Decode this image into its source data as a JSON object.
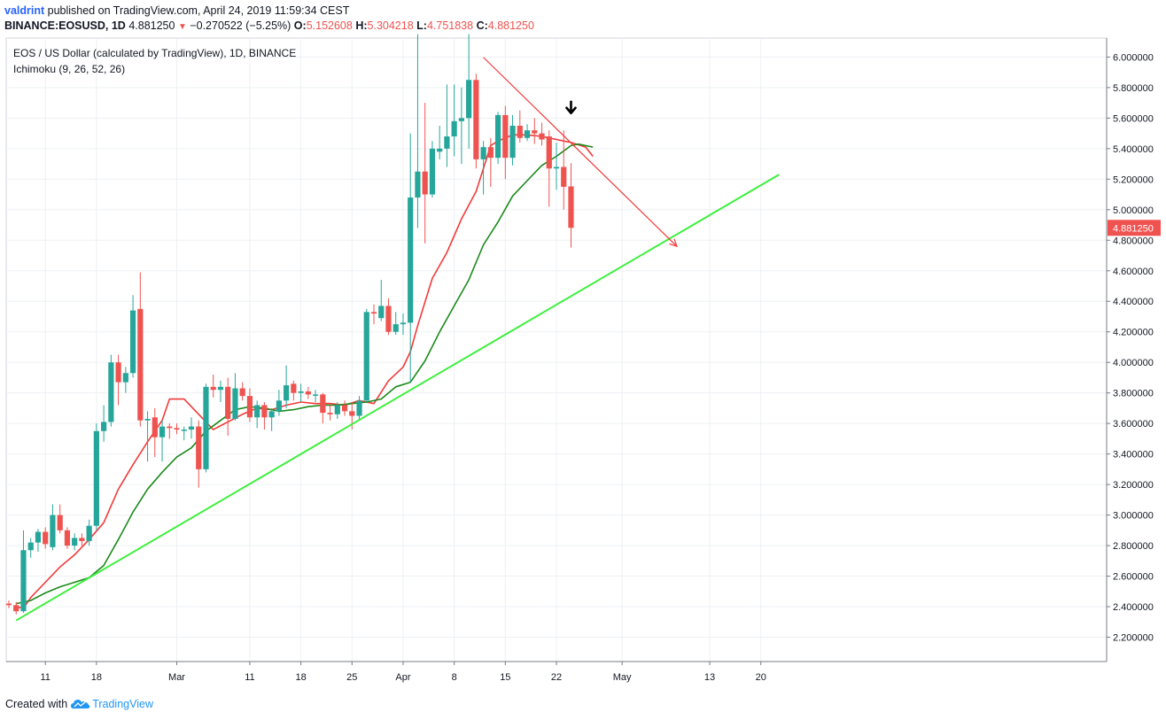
{
  "header": {
    "author": "valdrint",
    "published_text": " published on TradingView.com, April 24, 2019 11:59:34 CEST",
    "symbol": "BINANCE:EOSUSD, 1D",
    "last_price": "4.881250",
    "change_arrow": "▼",
    "change": "−0.270522 (−5.25%)",
    "o_label": "O:",
    "o_value": "5.152608",
    "h_label": "H:",
    "h_value": "5.304218",
    "l_label": "L:",
    "l_value": "4.751838",
    "c_label": "C:",
    "c_value": "4.881250"
  },
  "legend": {
    "title": "EOS / US Dollar (calculated by TradingView), 1D, BINANCE",
    "indicator": "Ichimoku (9, 26, 52, 26)"
  },
  "footer": {
    "created_with": "Created with",
    "brand": "TradingView"
  },
  "colors": {
    "up": "#26a69a",
    "down": "#ef5350",
    "conversion_line": "#f23a3a",
    "base_line": "#1b8a1b",
    "support_line": "#3cf03c",
    "resistance_line": "#f23a3a",
    "grid": "#eef0f3"
  },
  "chart_data": {
    "type": "candlestick",
    "x_start": "2019-02-06",
    "x_tick_labels": [
      "11",
      "18",
      "Mar",
      "11",
      "18",
      "25",
      "Apr",
      "8",
      "15",
      "22",
      "May",
      "13",
      "20"
    ],
    "x_tick_dates": [
      "2019-02-11",
      "2019-02-18",
      "2019-03-01",
      "2019-03-11",
      "2019-03-18",
      "2019-03-25",
      "2019-04-01",
      "2019-04-08",
      "2019-04-15",
      "2019-04-22",
      "2019-05-01",
      "2019-05-13",
      "2019-05-20"
    ],
    "ylim": [
      2.1,
      6.15
    ],
    "y_ticks": [
      "2.200000",
      "2.400000",
      "2.600000",
      "2.800000",
      "3.000000",
      "3.200000",
      "3.400000",
      "3.600000",
      "3.800000",
      "4.000000",
      "4.200000",
      "4.400000",
      "4.600000",
      "4.800000",
      "5.000000",
      "5.200000",
      "5.400000",
      "5.600000",
      "5.800000",
      "6.000000"
    ],
    "last_price_label": "4.881250",
    "candles": [
      {
        "d": "2019-02-06",
        "o": 2.42,
        "h": 2.44,
        "l": 2.39,
        "c": 2.41
      },
      {
        "d": "2019-02-07",
        "o": 2.41,
        "h": 2.43,
        "l": 2.35,
        "c": 2.37
      },
      {
        "d": "2019-02-08",
        "o": 2.37,
        "h": 2.9,
        "l": 2.36,
        "c": 2.77
      },
      {
        "d": "2019-02-09",
        "o": 2.77,
        "h": 2.85,
        "l": 2.72,
        "c": 2.82
      },
      {
        "d": "2019-02-10",
        "o": 2.82,
        "h": 2.91,
        "l": 2.76,
        "c": 2.89
      },
      {
        "d": "2019-02-11",
        "o": 2.89,
        "h": 2.92,
        "l": 2.78,
        "c": 2.81
      },
      {
        "d": "2019-02-12",
        "o": 2.79,
        "h": 3.07,
        "l": 2.77,
        "c": 3.0
      },
      {
        "d": "2019-02-13",
        "o": 3.0,
        "h": 3.07,
        "l": 2.88,
        "c": 2.9
      },
      {
        "d": "2019-02-14",
        "o": 2.9,
        "h": 2.92,
        "l": 2.78,
        "c": 2.8
      },
      {
        "d": "2019-02-15",
        "o": 2.8,
        "h": 2.88,
        "l": 2.77,
        "c": 2.85
      },
      {
        "d": "2019-02-16",
        "o": 2.85,
        "h": 2.88,
        "l": 2.8,
        "c": 2.83
      },
      {
        "d": "2019-02-17",
        "o": 2.83,
        "h": 2.97,
        "l": 2.8,
        "c": 2.93
      },
      {
        "d": "2019-02-18",
        "o": 2.93,
        "h": 3.6,
        "l": 2.9,
        "c": 3.55
      },
      {
        "d": "2019-02-19",
        "o": 3.55,
        "h": 3.72,
        "l": 3.48,
        "c": 3.61
      },
      {
        "d": "2019-02-20",
        "o": 3.61,
        "h": 4.05,
        "l": 3.58,
        "c": 4.0
      },
      {
        "d": "2019-02-21",
        "o": 4.0,
        "h": 4.05,
        "l": 3.72,
        "c": 3.87
      },
      {
        "d": "2019-02-22",
        "o": 3.87,
        "h": 3.97,
        "l": 3.8,
        "c": 3.93
      },
      {
        "d": "2019-02-23",
        "o": 3.93,
        "h": 4.44,
        "l": 3.9,
        "c": 4.34
      },
      {
        "d": "2019-02-24",
        "o": 4.35,
        "h": 4.59,
        "l": 3.58,
        "c": 3.62
      },
      {
        "d": "2019-02-25",
        "o": 3.62,
        "h": 3.68,
        "l": 3.35,
        "c": 3.63
      },
      {
        "d": "2019-02-26",
        "o": 3.64,
        "h": 3.7,
        "l": 3.38,
        "c": 3.51
      },
      {
        "d": "2019-02-27",
        "o": 3.51,
        "h": 3.62,
        "l": 3.35,
        "c": 3.58
      },
      {
        "d": "2019-02-28",
        "o": 3.58,
        "h": 3.6,
        "l": 3.5,
        "c": 3.57
      },
      {
        "d": "2019-03-01",
        "o": 3.57,
        "h": 3.6,
        "l": 3.53,
        "c": 3.56
      },
      {
        "d": "2019-03-02",
        "o": 3.56,
        "h": 3.58,
        "l": 3.49,
        "c": 3.56
      },
      {
        "d": "2019-03-03",
        "o": 3.56,
        "h": 3.64,
        "l": 3.5,
        "c": 3.58
      },
      {
        "d": "2019-03-04",
        "o": 3.58,
        "h": 3.62,
        "l": 3.18,
        "c": 3.3
      },
      {
        "d": "2019-03-05",
        "o": 3.3,
        "h": 3.86,
        "l": 3.28,
        "c": 3.84
      },
      {
        "d": "2019-03-06",
        "o": 3.84,
        "h": 3.92,
        "l": 3.77,
        "c": 3.82
      },
      {
        "d": "2019-03-07",
        "o": 3.82,
        "h": 3.88,
        "l": 3.74,
        "c": 3.84
      },
      {
        "d": "2019-03-08",
        "o": 3.84,
        "h": 3.9,
        "l": 3.52,
        "c": 3.63
      },
      {
        "d": "2019-03-09",
        "o": 3.63,
        "h": 3.93,
        "l": 3.62,
        "c": 3.83
      },
      {
        "d": "2019-03-10",
        "o": 3.83,
        "h": 3.87,
        "l": 3.75,
        "c": 3.78
      },
      {
        "d": "2019-03-11",
        "o": 3.78,
        "h": 3.83,
        "l": 3.61,
        "c": 3.64
      },
      {
        "d": "2019-03-12",
        "o": 3.64,
        "h": 3.75,
        "l": 3.57,
        "c": 3.72
      },
      {
        "d": "2019-03-13",
        "o": 3.72,
        "h": 3.74,
        "l": 3.56,
        "c": 3.64
      },
      {
        "d": "2019-03-14",
        "o": 3.64,
        "h": 3.7,
        "l": 3.55,
        "c": 3.68
      },
      {
        "d": "2019-03-15",
        "o": 3.68,
        "h": 3.82,
        "l": 3.65,
        "c": 3.75
      },
      {
        "d": "2019-03-16",
        "o": 3.75,
        "h": 3.98,
        "l": 3.7,
        "c": 3.85
      },
      {
        "d": "2019-03-17",
        "o": 3.86,
        "h": 3.88,
        "l": 3.75,
        "c": 3.8
      },
      {
        "d": "2019-03-18",
        "o": 3.8,
        "h": 3.86,
        "l": 3.74,
        "c": 3.81
      },
      {
        "d": "2019-03-19",
        "o": 3.81,
        "h": 3.84,
        "l": 3.76,
        "c": 3.79
      },
      {
        "d": "2019-03-20",
        "o": 3.79,
        "h": 3.82,
        "l": 3.74,
        "c": 3.79
      },
      {
        "d": "2019-03-21",
        "o": 3.79,
        "h": 3.8,
        "l": 3.6,
        "c": 3.67
      },
      {
        "d": "2019-03-22",
        "o": 3.67,
        "h": 3.72,
        "l": 3.62,
        "c": 3.66
      },
      {
        "d": "2019-03-23",
        "o": 3.66,
        "h": 3.74,
        "l": 3.63,
        "c": 3.72
      },
      {
        "d": "2019-03-24",
        "o": 3.72,
        "h": 3.75,
        "l": 3.65,
        "c": 3.68
      },
      {
        "d": "2019-03-25",
        "o": 3.68,
        "h": 3.74,
        "l": 3.56,
        "c": 3.65
      },
      {
        "d": "2019-03-26",
        "o": 3.65,
        "h": 3.78,
        "l": 3.62,
        "c": 3.75
      },
      {
        "d": "2019-03-27",
        "o": 3.75,
        "h": 4.35,
        "l": 3.74,
        "c": 4.33
      },
      {
        "d": "2019-03-28",
        "o": 4.33,
        "h": 4.38,
        "l": 4.25,
        "c": 4.32
      },
      {
        "d": "2019-03-29",
        "o": 4.29,
        "h": 4.54,
        "l": 4.27,
        "c": 4.37
      },
      {
        "d": "2019-03-30",
        "o": 4.37,
        "h": 4.42,
        "l": 4.18,
        "c": 4.2
      },
      {
        "d": "2019-03-31",
        "o": 4.2,
        "h": 4.33,
        "l": 4.18,
        "c": 4.25
      },
      {
        "d": "2019-04-01",
        "o": 4.25,
        "h": 4.32,
        "l": 4.18,
        "c": 4.26
      },
      {
        "d": "2019-04-02",
        "o": 4.26,
        "h": 5.5,
        "l": 3.87,
        "c": 5.08
      },
      {
        "d": "2019-04-03",
        "o": 5.08,
        "h": 6.15,
        "l": 4.88,
        "c": 5.25
      },
      {
        "d": "2019-04-04",
        "o": 5.25,
        "h": 5.7,
        "l": 4.78,
        "c": 5.1
      },
      {
        "d": "2019-04-05",
        "o": 5.1,
        "h": 5.45,
        "l": 5.08,
        "c": 5.4
      },
      {
        "d": "2019-04-06",
        "o": 5.38,
        "h": 5.55,
        "l": 5.33,
        "c": 5.4
      },
      {
        "d": "2019-04-07",
        "o": 5.4,
        "h": 5.82,
        "l": 5.28,
        "c": 5.48
      },
      {
        "d": "2019-04-08",
        "o": 5.48,
        "h": 5.82,
        "l": 5.35,
        "c": 5.58
      },
      {
        "d": "2019-04-09",
        "o": 5.58,
        "h": 5.8,
        "l": 5.3,
        "c": 5.6
      },
      {
        "d": "2019-04-10",
        "o": 5.6,
        "h": 6.15,
        "l": 5.4,
        "c": 5.85
      },
      {
        "d": "2019-04-11",
        "o": 5.85,
        "h": 5.89,
        "l": 5.27,
        "c": 5.33
      },
      {
        "d": "2019-04-12",
        "o": 5.33,
        "h": 5.45,
        "l": 5.1,
        "c": 5.41
      },
      {
        "d": "2019-04-13",
        "o": 5.41,
        "h": 5.47,
        "l": 5.15,
        "c": 5.34
      },
      {
        "d": "2019-04-14",
        "o": 5.34,
        "h": 5.64,
        "l": 5.3,
        "c": 5.62
      },
      {
        "d": "2019-04-15",
        "o": 5.62,
        "h": 5.68,
        "l": 5.2,
        "c": 5.34
      },
      {
        "d": "2019-04-16",
        "o": 5.34,
        "h": 5.62,
        "l": 5.29,
        "c": 5.55
      },
      {
        "d": "2019-04-17",
        "o": 5.55,
        "h": 5.65,
        "l": 5.44,
        "c": 5.47
      },
      {
        "d": "2019-04-18",
        "o": 5.47,
        "h": 5.56,
        "l": 5.45,
        "c": 5.52
      },
      {
        "d": "2019-04-19",
        "o": 5.52,
        "h": 5.6,
        "l": 5.43,
        "c": 5.5
      },
      {
        "d": "2019-04-20",
        "o": 5.5,
        "h": 5.57,
        "l": 5.42,
        "c": 5.46
      },
      {
        "d": "2019-04-21",
        "o": 5.48,
        "h": 5.52,
        "l": 5.02,
        "c": 5.27
      },
      {
        "d": "2019-04-22",
        "o": 5.27,
        "h": 5.44,
        "l": 5.13,
        "c": 5.28
      },
      {
        "d": "2019-04-23",
        "o": 5.28,
        "h": 5.52,
        "l": 5.0,
        "c": 5.15
      },
      {
        "d": "2019-04-24",
        "o": 5.152608,
        "h": 5.304218,
        "l": 4.751838,
        "c": 4.88125
      }
    ],
    "series": [
      {
        "name": "",
        "color": "#f23a3a",
        "values": [
          [
            1,
            2.4
          ],
          [
            2,
            2.39
          ],
          [
            3,
            2.46
          ],
          [
            5,
            2.56
          ],
          [
            7,
            2.66
          ],
          [
            9,
            2.74
          ],
          [
            11,
            2.84
          ],
          [
            13,
            2.95
          ],
          [
            15,
            3.17
          ],
          [
            17,
            3.33
          ],
          [
            19,
            3.48
          ],
          [
            21,
            3.62
          ],
          [
            22,
            3.76
          ],
          [
            24,
            3.76
          ],
          [
            26,
            3.66
          ],
          [
            28,
            3.56
          ],
          [
            30,
            3.61
          ],
          [
            32,
            3.66
          ],
          [
            34,
            3.7
          ],
          [
            36,
            3.69
          ],
          [
            38,
            3.72
          ],
          [
            40,
            3.74
          ],
          [
            42,
            3.73
          ],
          [
            44,
            3.73
          ],
          [
            46,
            3.72
          ],
          [
            48,
            3.75
          ],
          [
            50,
            3.73
          ],
          [
            52,
            3.88
          ],
          [
            54,
            3.97
          ],
          [
            55,
            4.07
          ],
          [
            56,
            4.24
          ],
          [
            58,
            4.55
          ],
          [
            60,
            4.72
          ],
          [
            62,
            4.94
          ],
          [
            64,
            5.12
          ],
          [
            66,
            5.42
          ],
          [
            67,
            5.45
          ],
          [
            69,
            5.49
          ],
          [
            71,
            5.49
          ],
          [
            73,
            5.48
          ],
          [
            75,
            5.46
          ],
          [
            77,
            5.44
          ],
          [
            79,
            5.41
          ],
          [
            80,
            5.35
          ]
        ]
      },
      {
        "name": "",
        "color": "#1b8a1b",
        "values": [
          [
            1,
            2.42
          ],
          [
            3,
            2.44
          ],
          [
            5,
            2.49
          ],
          [
            7,
            2.53
          ],
          [
            9,
            2.56
          ],
          [
            11,
            2.59
          ],
          [
            13,
            2.67
          ],
          [
            15,
            2.84
          ],
          [
            17,
            3.02
          ],
          [
            19,
            3.17
          ],
          [
            21,
            3.28
          ],
          [
            23,
            3.38
          ],
          [
            25,
            3.44
          ],
          [
            27,
            3.55
          ],
          [
            29,
            3.62
          ],
          [
            31,
            3.69
          ],
          [
            33,
            3.71
          ],
          [
            35,
            3.7
          ],
          [
            37,
            3.68
          ],
          [
            39,
            3.69
          ],
          [
            41,
            3.71
          ],
          [
            43,
            3.72
          ],
          [
            45,
            3.72
          ],
          [
            47,
            3.73
          ],
          [
            49,
            3.74
          ],
          [
            51,
            3.76
          ],
          [
            53,
            3.84
          ],
          [
            55,
            3.87
          ],
          [
            57,
            4.01
          ],
          [
            59,
            4.2
          ],
          [
            61,
            4.37
          ],
          [
            63,
            4.54
          ],
          [
            65,
            4.77
          ],
          [
            67,
            4.92
          ],
          [
            69,
            5.09
          ],
          [
            71,
            5.19
          ],
          [
            73,
            5.29
          ],
          [
            75,
            5.35
          ],
          [
            77,
            5.42
          ],
          [
            78,
            5.43
          ],
          [
            80,
            5.41
          ]
        ]
      }
    ],
    "annotations": [
      {
        "type": "trendline",
        "name": "support",
        "x1": 1,
        "y1": 2.31,
        "x2": 105.5,
        "y2": 5.23,
        "color": "#3cf03c"
      },
      {
        "type": "trendline_arrow",
        "name": "resistance",
        "x1": 65,
        "y1": 5.998,
        "x2": 91.5,
        "y2": 4.76,
        "color": "#f23a3a"
      },
      {
        "type": "arrow_marker",
        "name": "down-arrow",
        "x": 77,
        "y": 5.65,
        "color": "#000000"
      }
    ]
  }
}
